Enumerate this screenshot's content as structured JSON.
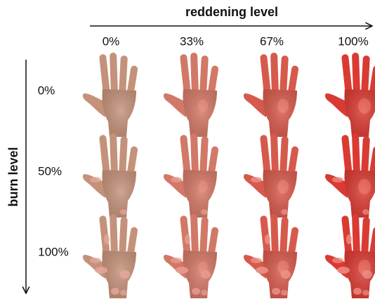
{
  "x_axis": {
    "label": "reddening level",
    "columns": [
      "0%",
      "33%",
      "67%",
      "100%"
    ]
  },
  "y_axis": {
    "label": "burn level",
    "rows": [
      "0%",
      "50%",
      "100%"
    ]
  }
}
